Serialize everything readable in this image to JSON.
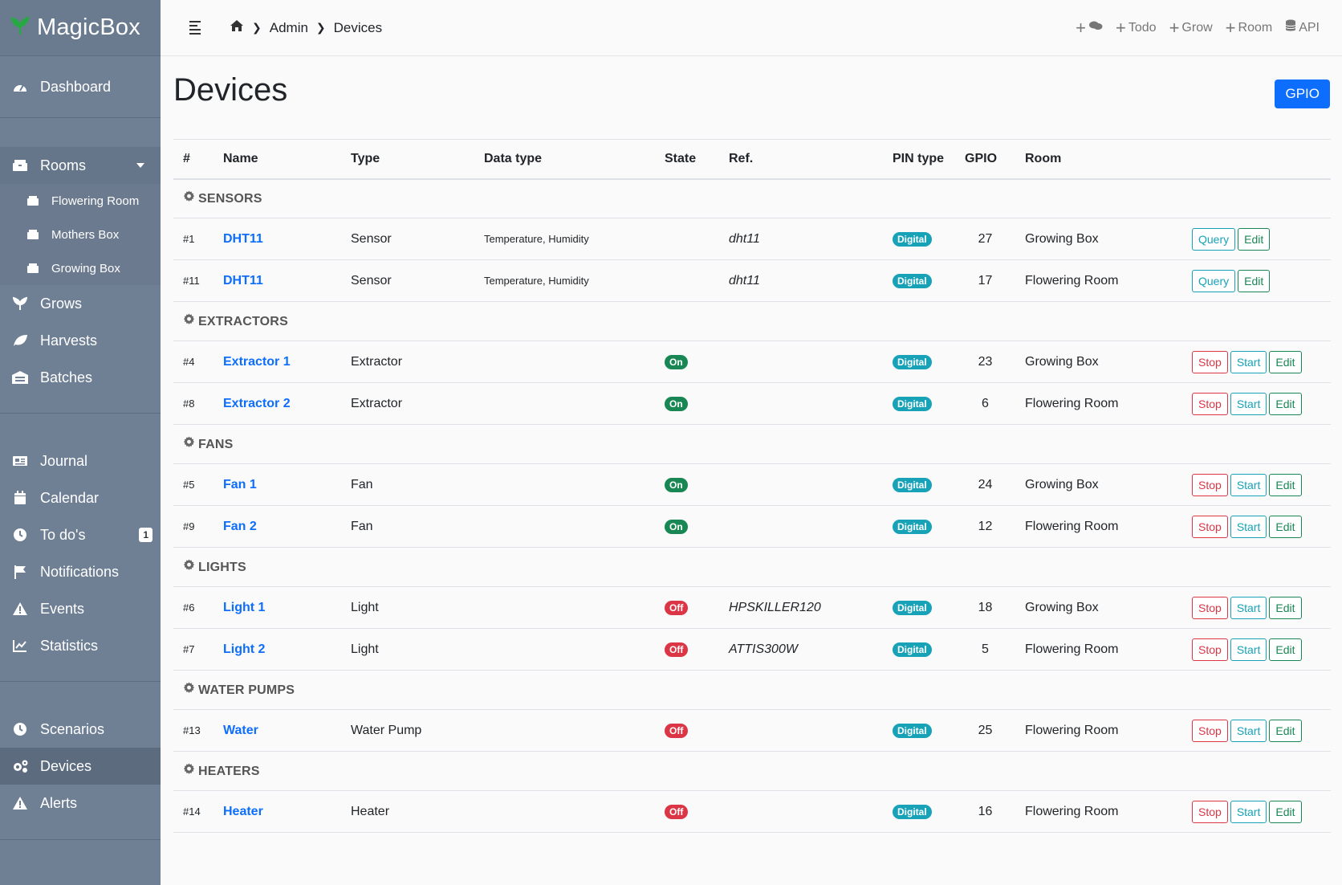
{
  "brand": {
    "name": "MagicBox"
  },
  "sidebar": {
    "dashboard": "Dashboard",
    "rooms": "Rooms",
    "room_items": [
      "Flowering Room",
      "Mothers Box",
      "Growing Box"
    ],
    "grows": "Grows",
    "harvests": "Harvests",
    "batches": "Batches",
    "journal": "Journal",
    "calendar": "Calendar",
    "todos": "To do's",
    "todos_count": "1",
    "notifications": "Notifications",
    "events": "Events",
    "statistics": "Statistics",
    "scenarios": "Scenarios",
    "devices": "Devices",
    "alerts": "Alerts"
  },
  "breadcrumb": {
    "admin": "Admin",
    "current": "Devices"
  },
  "top_actions": {
    "todo": "Todo",
    "grow": "Grow",
    "room": "Room",
    "api": "API"
  },
  "page": {
    "title": "Devices",
    "gpio_button": "GPIO"
  },
  "table": {
    "headers": {
      "num": "#",
      "name": "Name",
      "type": "Type",
      "data_type": "Data type",
      "state": "State",
      "ref": "Ref.",
      "pin_type": "PIN type",
      "gpio": "GPIO",
      "room": "Room"
    },
    "groups": [
      {
        "label": "SENSORS",
        "rows": [
          {
            "num": "#1",
            "name": "DHT11",
            "type": "Sensor",
            "data_type": "Temperature, Humidity",
            "state": "",
            "ref": "dht11",
            "pin": "Digital",
            "gpio": "27",
            "room": "Growing Box",
            "buttons": [
              "Query",
              "Edit"
            ]
          },
          {
            "num": "#11",
            "name": "DHT11",
            "type": "Sensor",
            "data_type": "Temperature, Humidity",
            "state": "",
            "ref": "dht11",
            "pin": "Digital",
            "gpio": "17",
            "room": "Flowering Room",
            "buttons": [
              "Query",
              "Edit"
            ]
          }
        ]
      },
      {
        "label": "EXTRACTORS",
        "rows": [
          {
            "num": "#4",
            "name": "Extractor 1",
            "type": "Extractor",
            "data_type": "",
            "state": "On",
            "ref": "",
            "pin": "Digital",
            "gpio": "23",
            "room": "Growing Box",
            "buttons": [
              "Stop",
              "Start",
              "Edit"
            ]
          },
          {
            "num": "#8",
            "name": "Extractor 2",
            "type": "Extractor",
            "data_type": "",
            "state": "On",
            "ref": "",
            "pin": "Digital",
            "gpio": "6",
            "room": "Flowering Room",
            "buttons": [
              "Stop",
              "Start",
              "Edit"
            ]
          }
        ]
      },
      {
        "label": "FANS",
        "rows": [
          {
            "num": "#5",
            "name": "Fan 1",
            "type": "Fan",
            "data_type": "",
            "state": "On",
            "ref": "",
            "pin": "Digital",
            "gpio": "24",
            "room": "Growing Box",
            "buttons": [
              "Stop",
              "Start",
              "Edit"
            ]
          },
          {
            "num": "#9",
            "name": "Fan 2",
            "type": "Fan",
            "data_type": "",
            "state": "On",
            "ref": "",
            "pin": "Digital",
            "gpio": "12",
            "room": "Flowering Room",
            "buttons": [
              "Stop",
              "Start",
              "Edit"
            ]
          }
        ]
      },
      {
        "label": "LIGHTS",
        "rows": [
          {
            "num": "#6",
            "name": "Light 1",
            "type": "Light",
            "data_type": "",
            "state": "Off",
            "ref": "HPSKILLER120",
            "pin": "Digital",
            "gpio": "18",
            "room": "Growing Box",
            "buttons": [
              "Stop",
              "Start",
              "Edit"
            ]
          },
          {
            "num": "#7",
            "name": "Light 2",
            "type": "Light",
            "data_type": "",
            "state": "Off",
            "ref": "ATTIS300W",
            "pin": "Digital",
            "gpio": "5",
            "room": "Flowering Room",
            "buttons": [
              "Stop",
              "Start",
              "Edit"
            ]
          }
        ]
      },
      {
        "label": "WATER PUMPS",
        "rows": [
          {
            "num": "#13",
            "name": "Water",
            "type": "Water Pump",
            "data_type": "",
            "state": "Off",
            "ref": "",
            "pin": "Digital",
            "gpio": "25",
            "room": "Flowering Room",
            "buttons": [
              "Stop",
              "Start",
              "Edit"
            ]
          }
        ]
      },
      {
        "label": "HEATERS",
        "rows": [
          {
            "num": "#14",
            "name": "Heater",
            "type": "Heater",
            "data_type": "",
            "state": "Off",
            "ref": "",
            "pin": "Digital",
            "gpio": "16",
            "room": "Flowering Room",
            "buttons": [
              "Stop",
              "Start",
              "Edit"
            ]
          }
        ]
      }
    ]
  },
  "colors": {
    "sidebar": "#6f7f94",
    "primary": "#0d6efd",
    "success": "#198754",
    "danger": "#dc3545",
    "info": "#17a2b8"
  }
}
